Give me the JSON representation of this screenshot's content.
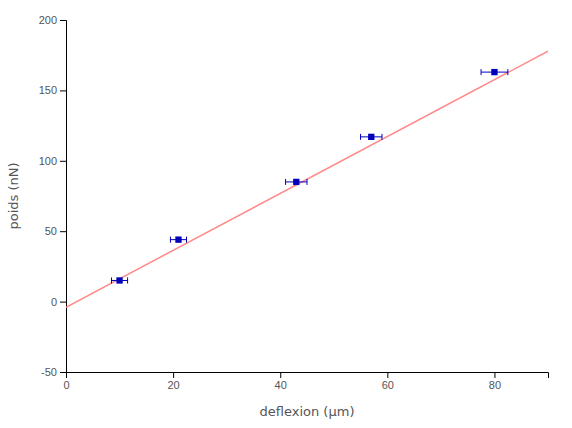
{
  "chart_data": {
    "type": "scatter",
    "xlabel": "deflexion (μm)",
    "ylabel": "poids (nN)",
    "xlim": [
      0,
      90
    ],
    "ylim": [
      -50,
      200
    ],
    "xticks": [
      0,
      20,
      40,
      60,
      80
    ],
    "yticks": [
      -50,
      0,
      50,
      100,
      150,
      200
    ],
    "series": [
      {
        "type": "scatter",
        "color": "#0000bb",
        "marker": "square",
        "x": [
          10.0,
          21.0,
          43.0,
          57.0,
          80.0
        ],
        "values": [
          15.0,
          44.0,
          85.0,
          117.0,
          163.0
        ],
        "x_err": [
          1.5,
          1.5,
          2.0,
          2.0,
          2.5
        ]
      },
      {
        "type": "line",
        "color": "#ff8888",
        "x": [
          0,
          90
        ],
        "values": [
          -4.0,
          177.8
        ]
      }
    ]
  }
}
